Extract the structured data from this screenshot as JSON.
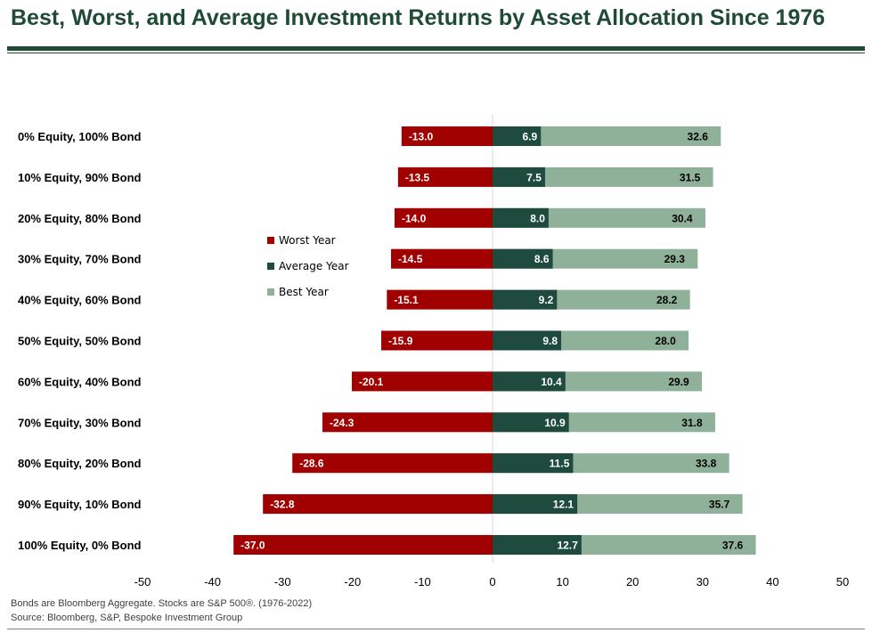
{
  "title": "Best, Worst, and Average Investment Returns by Asset Allocation Since 1976",
  "notes": {
    "line1": "Bonds are Bloomberg Aggregate. Stocks are S&P 500®. (1976-2022)",
    "line2": "Source: Bloomberg, S&P, Bespoke Investment Group"
  },
  "colors": {
    "title": "#1f4b35",
    "worst": "#a00000",
    "average": "#1f4b3f",
    "best": "#8fb19a"
  },
  "chart_data": {
    "type": "bar",
    "orientation": "horizontal",
    "stacking": "diverging",
    "categories": [
      "0% Equity, 100% Bond",
      "10% Equity, 90% Bond",
      "20% Equity, 80% Bond",
      "30% Equity, 70% Bond",
      "40% Equity, 60% Bond",
      "50% Equity, 50% Bond",
      "60% Equity, 40% Bond",
      "70% Equity, 30% Bond",
      "80% Equity, 20% Bond",
      "90% Equity, 10% Bond",
      "100% Equity, 0% Bond"
    ],
    "series": [
      {
        "name": "Worst Year",
        "values": [
          -13.0,
          -13.5,
          -14.0,
          -14.5,
          -15.1,
          -15.9,
          -20.1,
          -24.3,
          -28.6,
          -32.8,
          -37.0
        ],
        "labels": [
          "-13.0",
          "-13.5",
          "-14.0",
          "-14.5",
          "-15.1",
          "-15.9",
          "-20.1",
          "-24.3",
          "-28.6",
          "-32.8",
          "-37.0"
        ]
      },
      {
        "name": "Average Year",
        "values": [
          6.9,
          7.5,
          8.0,
          8.6,
          9.2,
          9.8,
          10.4,
          10.9,
          11.5,
          12.1,
          12.7
        ],
        "labels": [
          "6.9",
          "7.5",
          "8.0",
          "8.6",
          "9.2",
          "9.8",
          "10.4",
          "10.9",
          "11.5",
          "12.1",
          "12.7"
        ]
      },
      {
        "name": "Best Year",
        "values": [
          32.6,
          31.5,
          30.4,
          29.3,
          28.2,
          28.0,
          29.9,
          31.8,
          33.8,
          35.7,
          37.6
        ],
        "labels": [
          "32.6",
          "31.5",
          "30.4",
          "29.3",
          "28.2",
          "28.0",
          "29.9",
          "31.8",
          "33.8",
          "35.7",
          "37.6"
        ]
      }
    ],
    "xlim": [
      -50,
      50
    ],
    "xticks": [
      -50,
      -40,
      -30,
      -20,
      -10,
      0,
      10,
      20,
      30,
      40,
      50
    ],
    "xtick_labels": [
      "-50",
      "-40",
      "-30",
      "-20",
      "-10",
      "0",
      "10",
      "20",
      "30",
      "40",
      "50"
    ],
    "grid": false,
    "legend_position": "center-left"
  }
}
